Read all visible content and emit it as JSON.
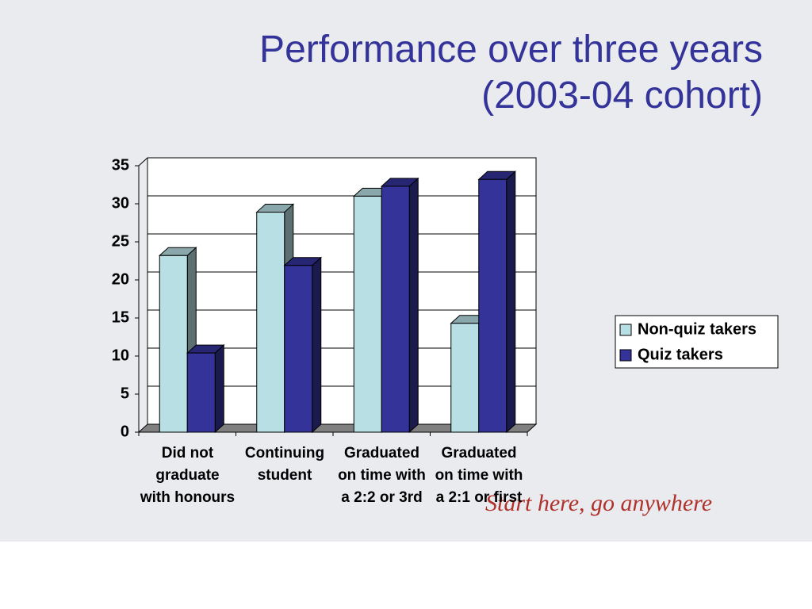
{
  "chart_data": {
    "type": "bar3d",
    "title": "Performance over three years (2003-04 cohort)",
    "categories": [
      "Did not graduate with honours",
      "Continuing student",
      "Graduated on time with a 2:2 or 3rd",
      "Graduated on time with a 2:1 or first"
    ],
    "series": [
      {
        "name": "Non-quiz takers",
        "color": "#b8e0e4",
        "values": [
          23.2,
          28.9,
          31,
          14.3
        ]
      },
      {
        "name": "Quiz takers",
        "color": "#333399",
        "values": [
          10.4,
          21.9,
          32.3,
          33.2
        ]
      }
    ],
    "ylim": [
      0,
      35
    ],
    "yticks": [
      0,
      5,
      10,
      15,
      20,
      25,
      30,
      35
    ],
    "grid": true,
    "legend": "right"
  },
  "tagline": "Start here, go anywhere"
}
